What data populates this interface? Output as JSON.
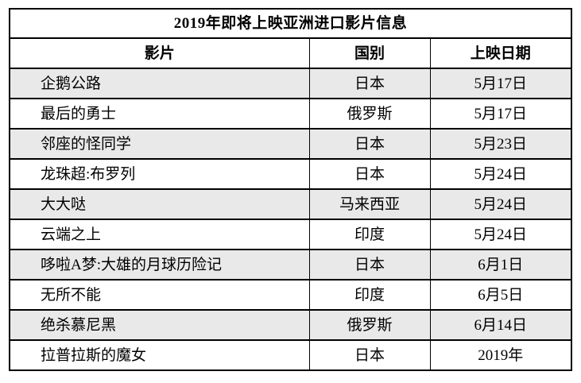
{
  "table": {
    "title": "2019年即将上映亚洲进口影片信息",
    "columns": [
      {
        "key": "film",
        "label": "影片"
      },
      {
        "key": "country",
        "label": "国别"
      },
      {
        "key": "date",
        "label": "上映日期"
      }
    ],
    "rows": [
      {
        "film": "企鹅公路",
        "country": "日本",
        "date": "5月17日"
      },
      {
        "film": "最后的勇士",
        "country": "俄罗斯",
        "date": "5月17日"
      },
      {
        "film": "邻座的怪同学",
        "country": "日本",
        "date": "5月23日"
      },
      {
        "film": "龙珠超:布罗列",
        "country": "日本",
        "date": "5月24日"
      },
      {
        "film": "大大哒",
        "country": "马来西亚",
        "date": "5月24日"
      },
      {
        "film": "云端之上",
        "country": "印度",
        "date": "5月24日"
      },
      {
        "film": "哆啦A梦:大雄的月球历险记",
        "country": "日本",
        "date": "6月1日"
      },
      {
        "film": "无所不能",
        "country": "印度",
        "date": "6月5日"
      },
      {
        "film": "绝杀慕尼黑",
        "country": "俄罗斯",
        "date": "6月14日"
      },
      {
        "film": "拉普拉斯的魔女",
        "country": "日本",
        "date": "2019年"
      }
    ],
    "colors": {
      "stripe": "#e9e9e9",
      "border": "#000000",
      "background": "#ffffff",
      "text": "#000000"
    }
  }
}
